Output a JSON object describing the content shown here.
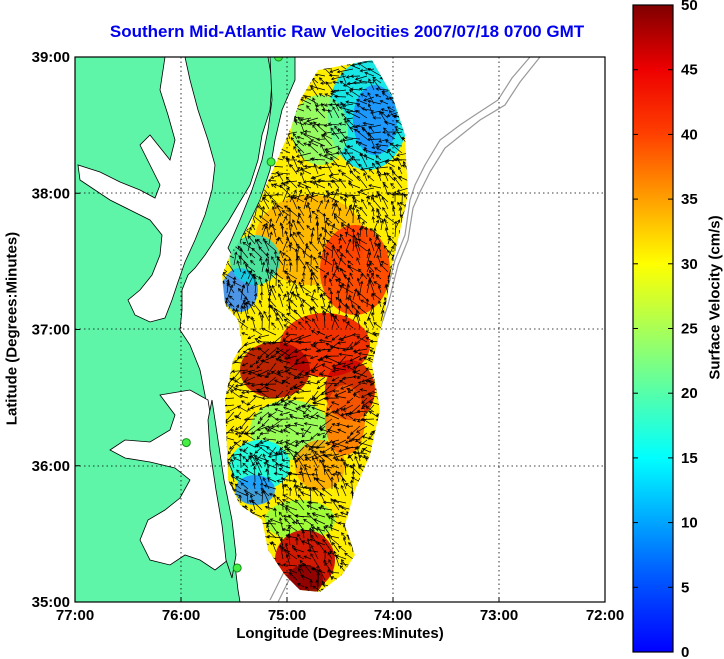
{
  "map": {
    "title": "Southern Mid-Atlantic Raw Velocities 2007/07/18 0700 GMT",
    "xlabel": "Longitude (Degrees:Minutes)",
    "ylabel": "Latitude (Degrees:Minutes)",
    "x_ticks": [
      "77:00",
      "76:00",
      "75:00",
      "74:00",
      "73:00",
      "72:00"
    ],
    "y_ticks": [
      "39:00",
      "38:00",
      "37:00",
      "36:00",
      "35:00"
    ],
    "lon_range": [
      -77,
      -72
    ],
    "lat_range": [
      35,
      39
    ],
    "grid": "dotted",
    "land_color": "#5ff5a8",
    "colorbar": {
      "label": "Surface Velocity (cm/s)",
      "ticks": [
        "50",
        "45",
        "40",
        "35",
        "30",
        "25",
        "20",
        "15",
        "10",
        "5",
        "0"
      ],
      "range": [
        0,
        50
      ],
      "colormap": "jet"
    },
    "stations": [
      {
        "name": "station-1",
        "lon": -75.08,
        "lat": 39.0
      },
      {
        "name": "station-2",
        "lon": -75.15,
        "lat": 38.23
      },
      {
        "name": "station-3",
        "lon": -75.95,
        "lat": 36.17
      },
      {
        "name": "station-4",
        "lon": -75.47,
        "lat": 35.25
      }
    ]
  }
}
